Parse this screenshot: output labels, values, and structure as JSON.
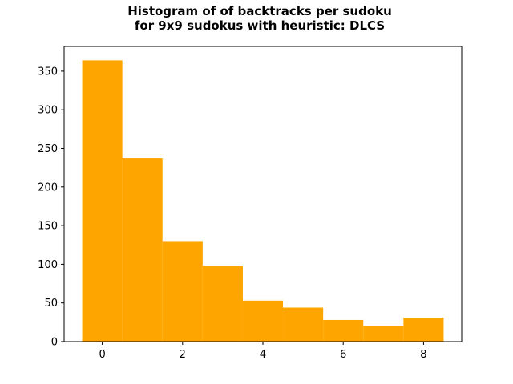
{
  "chart_data": {
    "type": "bar",
    "title_line1": "Histogram of of backtracks per sudoku",
    "title_line2": "for 9x9 sudokus with heuristic: DLCS",
    "xlabel": "",
    "ylabel": "",
    "bar_color": "#ffa500",
    "bins": [
      {
        "x": 0,
        "count": 364
      },
      {
        "x": 1,
        "count": 237
      },
      {
        "x": 2,
        "count": 130
      },
      {
        "x": 3,
        "count": 98
      },
      {
        "x": 4,
        "count": 53
      },
      {
        "x": 5,
        "count": 44
      },
      {
        "x": 6,
        "count": 28
      },
      {
        "x": 7,
        "count": 20
      },
      {
        "x": 8,
        "count": 31
      }
    ],
    "bin_width": 1,
    "xlim": [
      -0.95,
      8.95
    ],
    "ylim": [
      0,
      382
    ],
    "xticks": [
      0,
      2,
      4,
      6,
      8
    ],
    "yticks": [
      0,
      50,
      100,
      150,
      200,
      250,
      300,
      350
    ],
    "grid": false,
    "legend": "none"
  }
}
